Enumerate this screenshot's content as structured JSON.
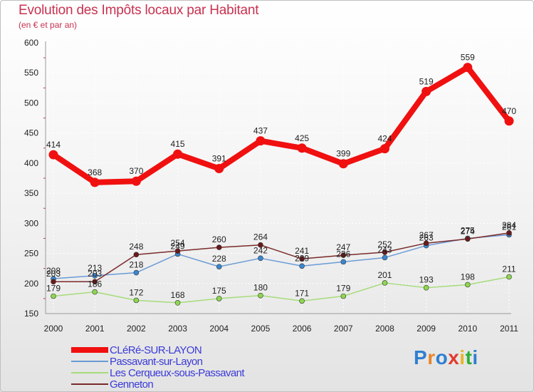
{
  "title": "Evolution des Impôts locaux par Habitant",
  "subtitle": "(en € et par an)",
  "brand": {
    "text": "Proxiti",
    "colors": [
      "#2f7fd0",
      "#e8862a",
      "#2f7fd0",
      "#e23a2a",
      "#e8b52a",
      "#2fae3a",
      "#2f7fd0"
    ]
  },
  "chart_data": {
    "type": "line",
    "x": [
      "2000",
      "2001",
      "2002",
      "2003",
      "2004",
      "2005",
      "2006",
      "2007",
      "2008",
      "2009",
      "2010",
      "2011"
    ],
    "ylim": [
      150,
      600
    ],
    "yticks": [
      "150",
      "200",
      "250",
      "300",
      "350",
      "400",
      "450",
      "500",
      "550",
      "600"
    ],
    "grid": true,
    "legend_position": "bottom-left",
    "series": [
      {
        "name": "CLéRé-SUR-LAYON",
        "color": "#f01010",
        "marker": "#f01010",
        "width": 8,
        "values": [
          414,
          368,
          370,
          415,
          391,
          437,
          425,
          399,
          424,
          519,
          559,
          470
        ],
        "labels": [
          "414",
          "368",
          "370",
          "415",
          "391",
          "437",
          "425",
          "399",
          "424",
          "519",
          "559",
          "470"
        ]
      },
      {
        "name": "Passavant-sur-Layon",
        "color": "#6a9cd6",
        "marker": "#3a86d0",
        "width": 1.5,
        "values": [
          208,
          213,
          218,
          249,
          228,
          242,
          229,
          236,
          243,
          263,
          275,
          281
        ],
        "labels": [
          "208",
          "213",
          "218",
          "249",
          "228",
          "242",
          "229",
          "236",
          "243",
          "263",
          "275",
          "281"
        ]
      },
      {
        "name": "Les Cerqueux-sous-Passavant",
        "color": "#a6dc7a",
        "marker": "#8ed650",
        "width": 1.5,
        "values": [
          179,
          186,
          172,
          168,
          175,
          180,
          171,
          179,
          201,
          193,
          198,
          211
        ],
        "labels": [
          "179",
          "186",
          "172",
          "168",
          "175",
          "180",
          "171",
          "179",
          "201",
          "193",
          "198",
          "211"
        ]
      },
      {
        "name": "Genneton",
        "color": "#7a2a2a",
        "marker": "#6a1a1a",
        "width": 1.5,
        "values": [
          203,
          203,
          248,
          254,
          260,
          264,
          241,
          247,
          252,
          267,
          274,
          284
        ],
        "labels": [
          "203",
          "203",
          "248",
          "254",
          "260",
          "264",
          "241",
          "247",
          "252",
          "267",
          "274",
          "284"
        ]
      }
    ]
  }
}
